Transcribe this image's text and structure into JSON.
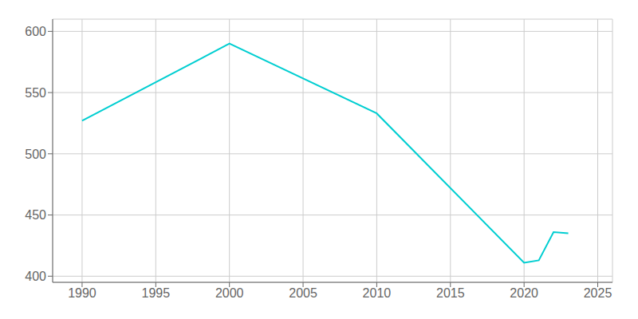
{
  "chart_data": {
    "type": "line",
    "x": [
      1990,
      2000,
      2010,
      2020,
      2021,
      2022,
      2023
    ],
    "values": [
      527,
      590,
      533,
      411,
      413,
      436,
      435
    ],
    "color": "#00CED1",
    "xlim": [
      1988,
      2026
    ],
    "ylim": [
      395,
      610
    ],
    "xticks": [
      1990,
      1995,
      2000,
      2005,
      2010,
      2015,
      2020,
      2025
    ],
    "yticks": [
      400,
      450,
      500,
      550,
      600
    ],
    "grid": true
  }
}
